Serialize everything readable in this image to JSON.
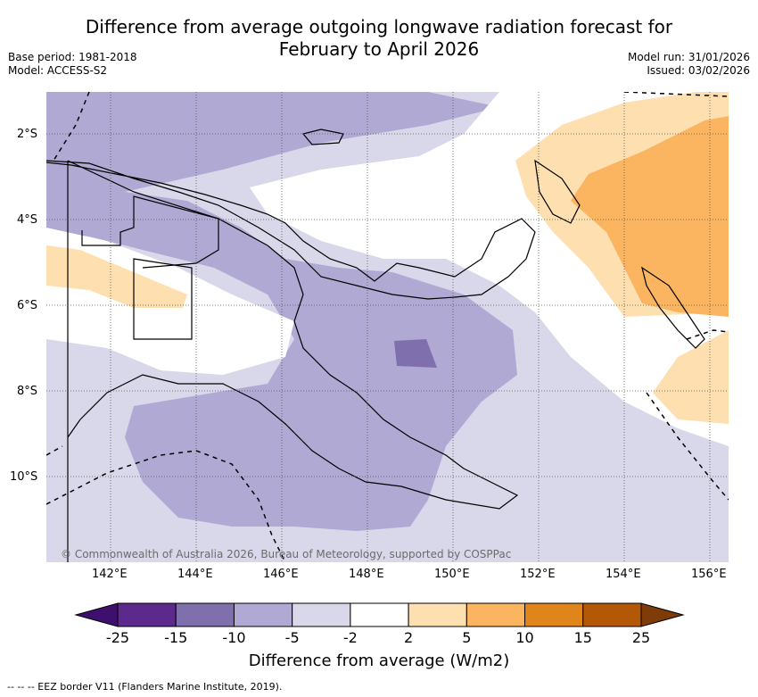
{
  "title_line1": "Difference from average outgoing longwave radiation forecast for",
  "title_line2": "February to April 2026",
  "base_period": "Base period: 1981-2018",
  "model": "Model: ACCESS-S2",
  "model_run": "Model run: 31/01/2026",
  "issued": "Issued: 03/02/2026",
  "copyright": "© Commonwealth of Australia 2026, Bureau of Meteorology, supported by COSPPac",
  "footer": "--  --  -- EEZ border V11 (Flanders Marine Institute, 2019).",
  "lat_ticks": [
    "2°S",
    "4°S",
    "6°S",
    "8°S",
    "10°S"
  ],
  "lon_ticks": [
    "142°E",
    "144°E",
    "146°E",
    "148°E",
    "150°E",
    "152°E",
    "154°E",
    "156°E"
  ],
  "colorbar": {
    "title": "Difference from average (W/m2)",
    "labels": [
      "-25",
      "-15",
      "-10",
      "-5",
      "-2",
      "2",
      "5",
      "10",
      "15",
      "25"
    ],
    "colors": [
      "#3f0f6e",
      "#5b2a8c",
      "#7f6fad",
      "#b0a9d3",
      "#d8d8ea",
      "#ffffff",
      "#fddfb0",
      "#fbb45f",
      "#e0851a",
      "#b35806",
      "#7f3b08"
    ]
  }
}
